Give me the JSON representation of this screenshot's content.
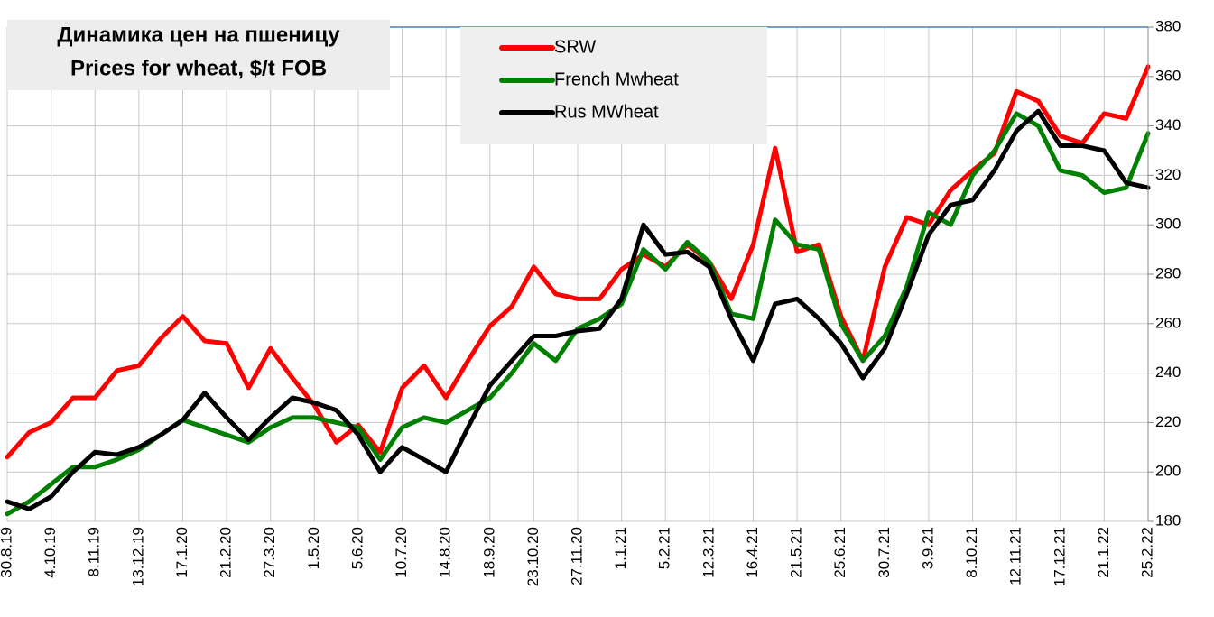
{
  "chart_data": {
    "type": "line",
    "title": "Динамика цен на пшеницу",
    "subtitle": "Prices for wheat, $/t FOB",
    "categories": [
      "30.8.19",
      null,
      "4.10.19",
      null,
      "8.11.19",
      null,
      "13.12.19",
      null,
      "17.1.20",
      null,
      "21.2.20",
      null,
      "27.3.20",
      null,
      "1.5.20",
      null,
      "5.6.20",
      null,
      "10.7.20",
      null,
      "14.8.20",
      null,
      "18.9.20",
      null,
      "23.10.20",
      null,
      "27.11.20",
      null,
      "1.1.21",
      null,
      "5.2.21",
      null,
      "12.3.21",
      null,
      "16.4.21",
      null,
      "21.5.21",
      null,
      "25.6.21",
      null,
      "30.7.21",
      null,
      "3.9.21",
      null,
      "8.10.21",
      null,
      "12.11.21",
      null,
      "17.12.21",
      null,
      "21.1.22",
      null,
      "25.2.22"
    ],
    "series": [
      {
        "name": "SRW",
        "color": "#ff0000",
        "values": [
          206,
          216,
          220,
          230,
          230,
          241,
          243,
          254,
          263,
          253,
          252,
          234,
          250,
          238,
          227,
          212,
          219,
          208,
          234,
          243,
          230,
          245,
          259,
          267,
          283,
          272,
          270,
          270,
          282,
          288,
          283,
          292,
          285,
          270,
          292,
          331,
          289,
          292,
          263,
          245,
          283,
          303,
          300,
          314,
          322,
          329,
          354,
          350,
          336,
          333,
          345,
          343,
          364
        ]
      },
      {
        "name": "French Mwheat",
        "color": "#008000",
        "values": [
          183,
          188,
          195,
          202,
          202,
          205,
          209,
          215,
          221,
          218,
          215,
          212,
          218,
          222,
          222,
          220,
          218,
          205,
          218,
          222,
          220,
          225,
          230,
          240,
          252,
          245,
          258,
          262,
          268,
          290,
          282,
          293,
          285,
          264,
          262,
          302,
          292,
          290,
          260,
          245,
          255,
          275,
          305,
          300,
          320,
          330,
          345,
          340,
          322,
          320,
          313,
          315,
          337
        ]
      },
      {
        "name": "Rus MWheat",
        "color": "#000000",
        "values": [
          188,
          185,
          190,
          200,
          208,
          207,
          210,
          215,
          221,
          232,
          222,
          213,
          222,
          230,
          228,
          225,
          215,
          200,
          210,
          205,
          200,
          218,
          235,
          245,
          255,
          255,
          257,
          258,
          270,
          300,
          288,
          289,
          283,
          262,
          245,
          268,
          270,
          262,
          252,
          238,
          250,
          272,
          296,
          308,
          310,
          322,
          338,
          346,
          332,
          332,
          330,
          317,
          315
        ]
      }
    ],
    "ylim": [
      180,
      380
    ],
    "yticks": [
      180,
      200,
      220,
      240,
      260,
      280,
      300,
      320,
      340,
      360,
      380
    ],
    "grid": true
  }
}
